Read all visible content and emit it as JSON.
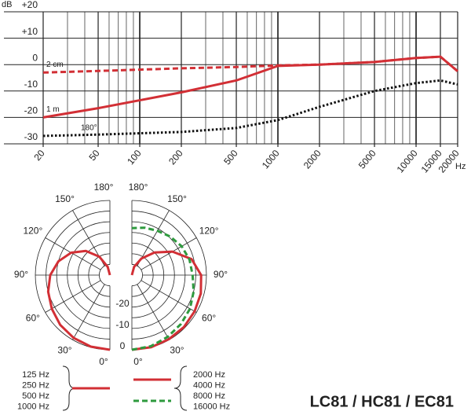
{
  "chart_data": [
    {
      "type": "line",
      "y_label": "dB",
      "x_label": "Hz",
      "xlog": true,
      "minor_grid": true,
      "x": [
        20,
        50,
        100,
        200,
        500,
        1000,
        2000,
        5000,
        10000,
        15000,
        20000
      ],
      "xlim": [
        20,
        20000
      ],
      "xticks": [
        20,
        50,
        100,
        200,
        500,
        1000,
        2000,
        5000,
        10000,
        15000,
        20000
      ],
      "ylim": [
        -30,
        20
      ],
      "yticks": [
        {
          "value": 20,
          "label": "+20"
        },
        {
          "value": 10,
          "label": "+10"
        },
        0,
        -10,
        -20,
        -30
      ],
      "series": [
        {
          "name": "2 cm",
          "color": "#d22f35",
          "dash": "dashed",
          "values": [
            -3,
            -2.4,
            -1.9,
            -1.4,
            -0.9,
            -0.3,
            0,
            1,
            2.5,
            3,
            -2.5
          ]
        },
        {
          "name": "1 m",
          "color": "#d22f35",
          "dash": "solid",
          "values": [
            -20,
            -16.5,
            -13.5,
            -10.5,
            -6,
            -0.5,
            0,
            1,
            2.5,
            3,
            -2.5
          ]
        },
        {
          "name": "180°",
          "color": "#111111",
          "dash": "dotted",
          "values": [
            -27,
            -26.5,
            -26,
            -25.5,
            -24,
            -21,
            -16,
            -10,
            -7,
            -6,
            -7.5
          ]
        }
      ]
    },
    {
      "type": "polar",
      "rlim": [
        -35,
        0
      ],
      "rticks": [
        0,
        -10,
        -20
      ],
      "rgrid": [
        0,
        -5,
        -10,
        -15,
        -20,
        -25,
        -30
      ],
      "theta": [
        0,
        15,
        30,
        45,
        60,
        75,
        90,
        105,
        120,
        135,
        150,
        165,
        180
      ],
      "theta_ticks": [
        {
          "value": 0,
          "label": "0°"
        },
        {
          "value": 30,
          "label": "30°"
        },
        {
          "value": 60,
          "label": "60°"
        },
        {
          "value": 90,
          "label": "90°"
        },
        {
          "value": 120,
          "label": "120°"
        },
        {
          "value": 150,
          "label": "150°"
        },
        {
          "value": 180,
          "label": "180°"
        }
      ],
      "series": [
        {
          "names": [
            "125 Hz",
            "250 Hz",
            "500 Hz",
            "1000 Hz"
          ],
          "side": "left",
          "color": "#d22f35",
          "dash": "solid",
          "values": [
            0,
            -0.3,
            -1,
            -2,
            -3.5,
            -5,
            -7,
            -10,
            -14,
            -19,
            -25,
            -31,
            -35
          ]
        },
        {
          "names": [
            "2000 Hz",
            "4000 Hz"
          ],
          "side": "right",
          "color": "#d22f35",
          "dash": "solid",
          "values": [
            0,
            0,
            -0.3,
            -0.5,
            -1,
            -1.5,
            -2.5,
            -6,
            -13,
            -20,
            -26,
            -31,
            -35
          ]
        },
        {
          "names": [
            "8000 Hz",
            "16000 Hz"
          ],
          "side": "right",
          "color": "#2e9a3e",
          "dash": "dashed",
          "values": [
            0,
            -0.5,
            -1.5,
            -2.5,
            -3.5,
            -5,
            -6.5,
            -7,
            -8,
            -9.5,
            -11,
            -12,
            -13
          ]
        }
      ]
    }
  ],
  "title": "LC81 / HC81 / EC81"
}
